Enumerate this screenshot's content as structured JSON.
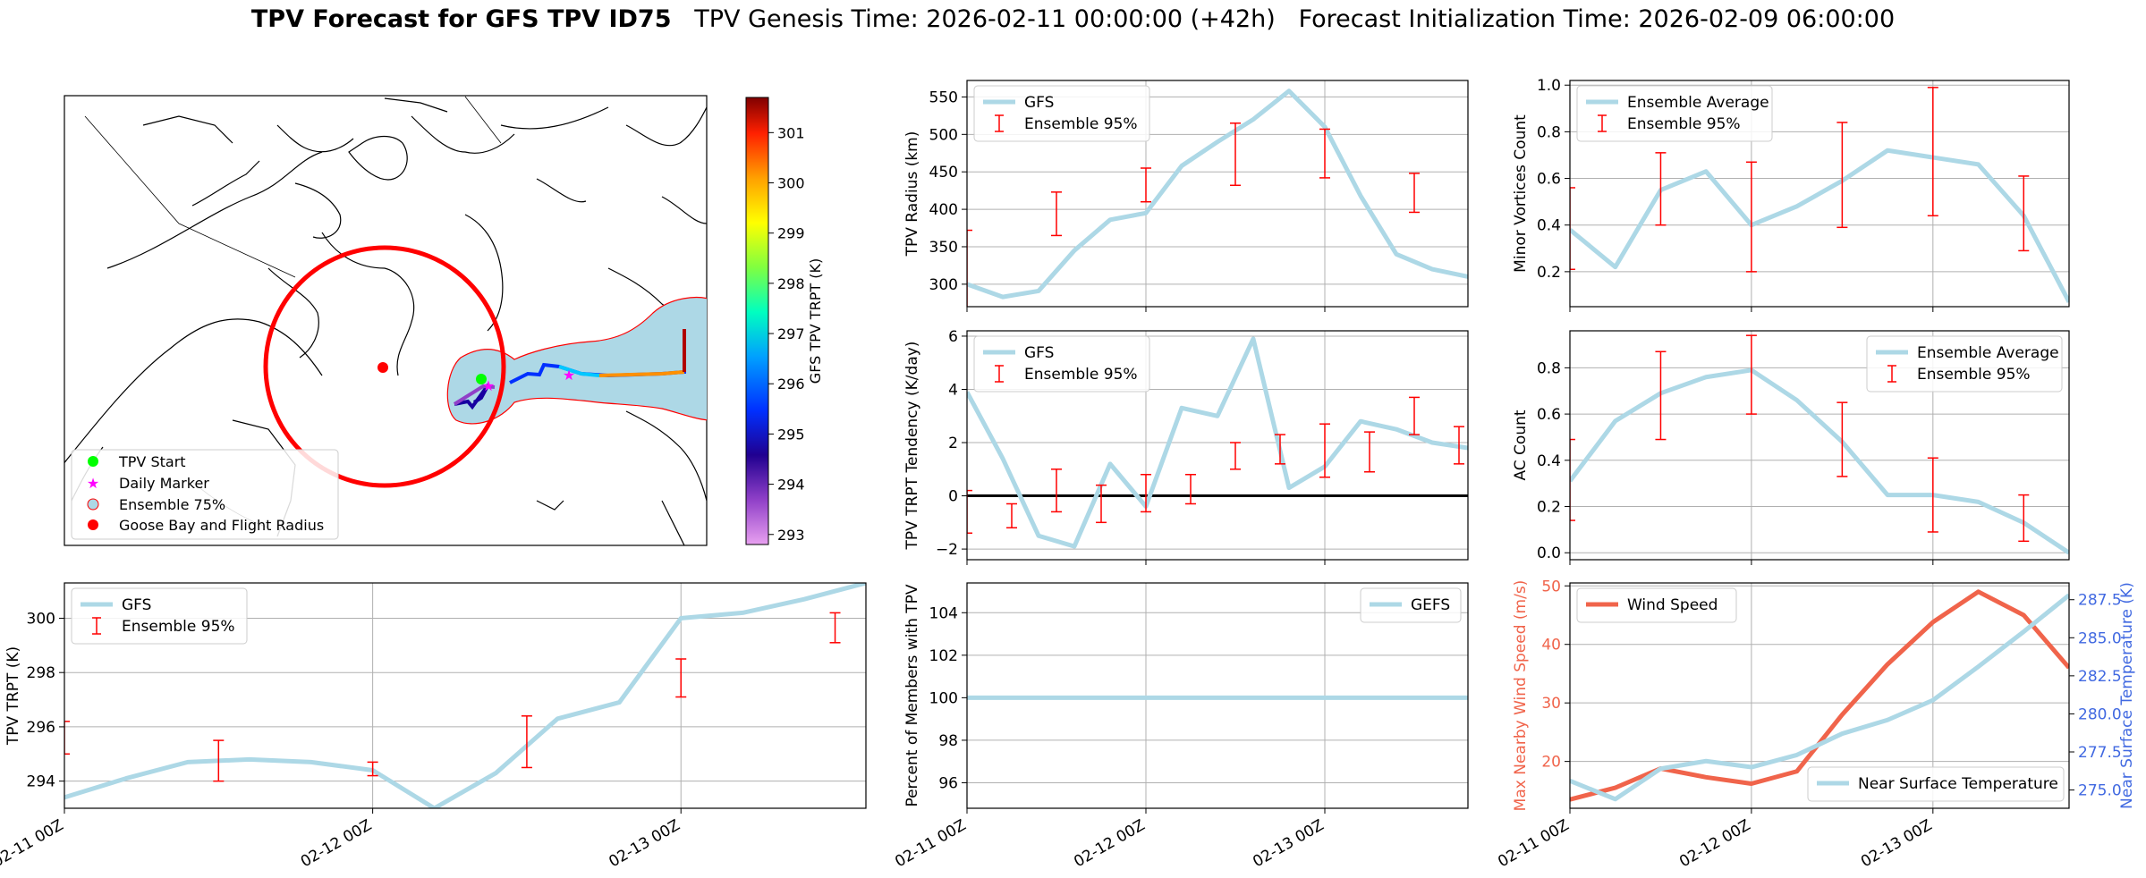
{
  "title": {
    "bold": "TPV Forecast for GFS TPV ID75",
    "genesis": "TPV Genesis Time: 2026-02-11 00:00:00 (+42h)",
    "init": "Forecast Initialization Time: 2026-02-09 06:00:00"
  },
  "colors": {
    "gfs": "#add8e6",
    "ens": "#ff0000",
    "wind": "#f0644b",
    "temp_axis": "#4169e1",
    "wind_axis": "#f0644b"
  },
  "map": {
    "colorbar_label": "GFS TPV TRPT (K)",
    "colorbar_ticks": [
      "293",
      "294",
      "295",
      "296",
      "297",
      "298",
      "299",
      "300",
      "301"
    ],
    "colorbar_range": [
      292.8,
      301.7
    ],
    "legend": [
      "TPV Start",
      "Daily Marker",
      "Ensemble 75%",
      "Goose Bay and Flight Radius"
    ]
  },
  "chart_data": [
    {
      "id": "trpt",
      "type": "line",
      "ylabel": "TPV TRPT (K)",
      "ylim": [
        293.0,
        301.3
      ],
      "xlim": [
        0,
        13
      ],
      "yticks": [
        "294",
        "296",
        "298",
        "300"
      ],
      "ytick_values": [
        294,
        296,
        298,
        300
      ],
      "xticks": [
        "02-11 00Z",
        "02-12 00Z",
        "02-13 00Z"
      ],
      "xtick_values": [
        0,
        5,
        10
      ],
      "legend_loc": "upper-left",
      "series": [
        {
          "name": "GFS",
          "x": [
            0,
            1,
            2,
            3,
            4,
            5,
            6,
            7,
            8,
            9,
            10,
            11,
            12,
            13
          ],
          "values": [
            293.4,
            294.1,
            294.7,
            294.8,
            294.7,
            294.4,
            293.0,
            294.3,
            296.3,
            296.9,
            300.0,
            300.2,
            300.7,
            301.3
          ]
        }
      ],
      "errorbars": {
        "name": "Ensemble 95%",
        "x": [
          0,
          2.5,
          5,
          7.5,
          10,
          12.5
        ],
        "low": [
          295.0,
          294.0,
          294.2,
          294.5,
          297.1,
          299.1
        ],
        "high": [
          296.2,
          295.5,
          294.7,
          296.4,
          298.5,
          300.2
        ]
      }
    },
    {
      "id": "radius",
      "type": "line",
      "ylabel": "TPV Radius (km)",
      "ylim": [
        270,
        572
      ],
      "xlim": [
        0,
        14
      ],
      "yticks": [
        "300",
        "350",
        "400",
        "450",
        "500",
        "550"
      ],
      "ytick_values": [
        300,
        350,
        400,
        450,
        500,
        550
      ],
      "legend_loc": "upper-left",
      "series": [
        {
          "name": "GFS",
          "x": [
            0,
            1,
            2,
            3,
            4,
            5,
            6,
            7,
            8,
            9,
            10,
            11,
            12,
            13,
            14
          ],
          "values": [
            300,
            283,
            291,
            345,
            386,
            395,
            458,
            490,
            520,
            558,
            510,
            418,
            340,
            320,
            310
          ]
        }
      ],
      "errorbars": {
        "name": "Ensemble 95%",
        "x": [
          0,
          2.5,
          5,
          7.5,
          10,
          12.5
        ],
        "low": [
          265,
          365,
          410,
          432,
          442,
          396
        ],
        "high": [
          372,
          423,
          455,
          515,
          507,
          448
        ]
      }
    },
    {
      "id": "tendency",
      "type": "line",
      "ylabel": "TPV TRPT Tendency (K/day)",
      "ylim": [
        -2.4,
        6.2
      ],
      "xlim": [
        0,
        14
      ],
      "yticks": [
        "−2",
        "0",
        "2",
        "4",
        "6"
      ],
      "ytick_values": [
        -2,
        0,
        2,
        4,
        6
      ],
      "zero_line": true,
      "legend_loc": "upper-left",
      "series": [
        {
          "name": "GFS",
          "x": [
            0,
            1,
            2,
            3,
            4,
            5,
            6,
            7,
            8,
            9,
            10,
            11,
            12,
            13,
            14
          ],
          "values": [
            3.9,
            1.4,
            -1.5,
            -1.9,
            1.2,
            -0.4,
            3.3,
            3.0,
            5.9,
            0.3,
            1.1,
            2.8,
            2.5,
            2.0,
            1.8
          ]
        }
      ],
      "errorbars": {
        "name": "Ensemble 95%",
        "x": [
          0,
          1.25,
          2.5,
          3.75,
          5,
          6.25,
          7.5,
          8.75,
          10,
          11.25,
          12.5,
          13.75
        ],
        "low": [
          -1.4,
          -1.2,
          -0.6,
          -1.0,
          -0.6,
          -0.3,
          1.0,
          1.2,
          0.7,
          0.9,
          2.3,
          1.2
        ],
        "high": [
          0.2,
          -0.3,
          1.0,
          0.4,
          0.8,
          0.8,
          2.0,
          2.3,
          2.7,
          2.4,
          3.7,
          2.6
        ]
      }
    },
    {
      "id": "members",
      "type": "line",
      "ylabel": "Percent of Members with TPV",
      "ylim": [
        94.8,
        105.4
      ],
      "xlim": [
        0,
        14
      ],
      "yticks": [
        "96",
        "98",
        "100",
        "102",
        "104"
      ],
      "ytick_values": [
        96,
        98,
        100,
        102,
        104
      ],
      "xticks": [
        "02-11 00Z",
        "02-12 00Z",
        "02-13 00Z"
      ],
      "xtick_values": [
        0,
        5,
        10
      ],
      "legend_loc": "upper-right",
      "series": [
        {
          "name": "GEFS",
          "x": [
            0,
            14
          ],
          "values": [
            100,
            100
          ]
        }
      ]
    },
    {
      "id": "minor",
      "type": "line",
      "ylabel": "Minor Vortices Count",
      "ylim": [
        0.05,
        1.02
      ],
      "xlim": [
        0,
        11
      ],
      "yticks": [
        "0.2",
        "0.4",
        "0.6",
        "0.8",
        "1.0"
      ],
      "ytick_values": [
        0.2,
        0.4,
        0.6,
        0.8,
        1.0
      ],
      "legend_loc": "upper-left",
      "series": [
        {
          "name": "Ensemble Average",
          "x": [
            0,
            1,
            2,
            3,
            4,
            5,
            6,
            7,
            8,
            9,
            10,
            11
          ],
          "values": [
            0.38,
            0.22,
            0.55,
            0.63,
            0.4,
            0.48,
            0.59,
            0.72,
            0.69,
            0.66,
            0.44,
            0.07
          ]
        }
      ],
      "errorbars": {
        "name": "Ensemble 95%",
        "x": [
          0,
          2,
          4,
          6,
          8,
          10
        ],
        "low": [
          0.21,
          0.4,
          0.2,
          0.39,
          0.44,
          0.29
        ],
        "high": [
          0.56,
          0.71,
          0.67,
          0.84,
          0.99,
          0.61
        ]
      }
    },
    {
      "id": "ac",
      "type": "line",
      "ylabel": "AC Count",
      "ylim": [
        -0.03,
        0.96
      ],
      "xlim": [
        0,
        11
      ],
      "yticks": [
        "0.0",
        "0.2",
        "0.4",
        "0.6",
        "0.8"
      ],
      "ytick_values": [
        0,
        0.2,
        0.4,
        0.6,
        0.8
      ],
      "legend_loc": "upper-right",
      "series": [
        {
          "name": "Ensemble Average",
          "x": [
            0,
            1,
            2,
            3,
            4,
            5,
            6,
            7,
            8,
            9,
            10,
            11
          ],
          "values": [
            0.31,
            0.57,
            0.69,
            0.76,
            0.79,
            0.66,
            0.48,
            0.25,
            0.25,
            0.22,
            0.13,
            0.0
          ]
        }
      ],
      "errorbars": {
        "name": "Ensemble 95%",
        "x": [
          0,
          2,
          4,
          6,
          8,
          10
        ],
        "low": [
          0.14,
          0.49,
          0.6,
          0.33,
          0.09,
          0.05
        ],
        "high": [
          0.49,
          0.87,
          0.94,
          0.65,
          0.41,
          0.25
        ]
      }
    },
    {
      "id": "wind_temp",
      "type": "line",
      "xlim": [
        0,
        11
      ],
      "ylabel": "Max Nearby Wind Speed (m/s)",
      "ylim": [
        12,
        50.5
      ],
      "yticks": [
        "20",
        "30",
        "40",
        "50"
      ],
      "ytick_values": [
        20,
        30,
        40,
        50
      ],
      "y2label": "Near Surface Temperature (K)",
      "y2lim": [
        273.8,
        288.6
      ],
      "y2ticks": [
        "275.0",
        "277.5",
        "280.0",
        "282.5",
        "285.0",
        "287.5"
      ],
      "y2tick_values": [
        275,
        277.5,
        280,
        282.5,
        285,
        287.5
      ],
      "xticks": [
        "02-11 00Z",
        "02-12 00Z",
        "02-13 00Z"
      ],
      "xtick_values": [
        0,
        4,
        8
      ],
      "series": [
        {
          "name": "Wind Speed",
          "axis": "left",
          "x": [
            0,
            1,
            2,
            3,
            4,
            5,
            6,
            7,
            8,
            9,
            10,
            11
          ],
          "values": [
            13.5,
            15.5,
            18.8,
            17.3,
            16.2,
            18.3,
            28.0,
            36.6,
            43.8,
            49.0,
            45.0,
            36.0
          ]
        },
        {
          "name": "Near Surface Temperature",
          "axis": "right",
          "x": [
            0,
            1,
            2,
            3,
            4,
            5,
            6,
            7,
            8,
            9,
            10,
            11
          ],
          "values": [
            275.6,
            274.4,
            276.4,
            276.9,
            276.5,
            277.3,
            278.7,
            279.6,
            280.9,
            283.1,
            285.4,
            287.8
          ]
        }
      ]
    }
  ]
}
